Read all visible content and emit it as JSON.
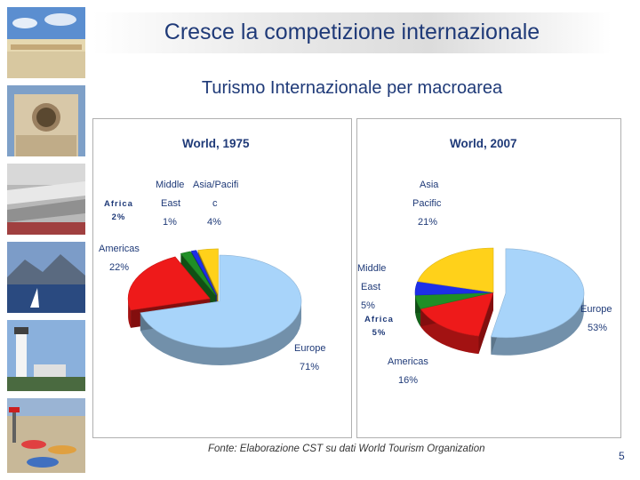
{
  "title": "Cresce la competizione internazionale",
  "subtitle": "Turismo Internazionale per macroarea",
  "source": "Fonte: Elaborazione CST su dati World Tourism Organization",
  "page_number": "5",
  "colors": {
    "europe": "#a8d4fa",
    "americas": "#ee1a1a",
    "africa": "#1f8f26",
    "middle_east": "#1d2fe8",
    "asia_pacific": "#ffd11a"
  },
  "sidebar": [
    {
      "name": "beach-photo"
    },
    {
      "name": "building-photo"
    },
    {
      "name": "harbor-photo"
    },
    {
      "name": "mountain-town-photo"
    },
    {
      "name": "lighthouse-photo"
    },
    {
      "name": "beach-umbrellas-photo"
    }
  ],
  "chart_data": [
    {
      "type": "pie",
      "title": "World, 1975",
      "series": [
        {
          "values": [
            71,
            22,
            2,
            1,
            4
          ]
        }
      ],
      "categories": [
        "Europe",
        "Americas",
        "Africa",
        "Middle East",
        "Asia/Pacific"
      ],
      "labels": {
        "europe": {
          "name": "Europe",
          "pct": "71%"
        },
        "americas": {
          "name": "Americas",
          "pct": "22%"
        },
        "africa": {
          "name": "Africa",
          "pct": "2%"
        },
        "middle_east": {
          "line1": "Middle",
          "line2": "East",
          "pct": "1%"
        },
        "asia_pacific": {
          "line1": "Asia/Pacifi",
          "line2": "c",
          "pct": "4%"
        }
      }
    },
    {
      "type": "pie",
      "title": "World, 2007",
      "series": [
        {
          "values": [
            53,
            16,
            5,
            5,
            21
          ]
        }
      ],
      "categories": [
        "Europe",
        "Americas",
        "Africa",
        "Middle East",
        "Asia Pacific"
      ],
      "labels": {
        "europe": {
          "name": "Europe",
          "pct": "53%"
        },
        "americas": {
          "name": "Americas",
          "pct": "16%"
        },
        "africa": {
          "name": "Africa",
          "pct": "5%"
        },
        "middle_east": {
          "line1": "Middle",
          "line2": "East",
          "pct": "5%"
        },
        "asia_pacific": {
          "line1": "Asia",
          "line2": "Pacific",
          "pct": "21%"
        }
      }
    }
  ]
}
